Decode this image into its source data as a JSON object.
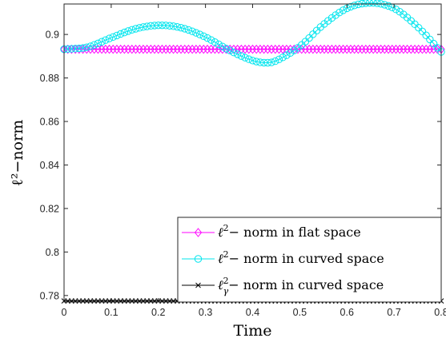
{
  "chart_data": {
    "type": "line",
    "xlabel": "Time",
    "ylabel": "ℓ²−norm",
    "xlim": [
      0,
      0.8
    ],
    "ylim": [
      0.777,
      0.914
    ],
    "x_ticks": [
      "0",
      "0.1",
      "0.2",
      "0.3",
      "0.4",
      "0.5",
      "0.6",
      "0.7",
      "0.8"
    ],
    "y_ticks": [
      "0.78",
      "0.8",
      "0.82",
      "0.84",
      "0.86",
      "0.88",
      "0.9"
    ],
    "grid": false,
    "legend_position": "bottom-right",
    "series": [
      {
        "name": "ℓ²− norm in flat space",
        "name_base": "ℓ",
        "name_sup": "2",
        "name_rest": "− norm in flat space",
        "color": "#ff00ff",
        "marker": "diamond",
        "x": [
          0,
          0.1,
          0.2,
          0.3,
          0.4,
          0.5,
          0.6,
          0.7,
          0.8
        ],
        "y": [
          0.8932,
          0.8932,
          0.8932,
          0.8932,
          0.8932,
          0.8932,
          0.8932,
          0.8932,
          0.8932
        ]
      },
      {
        "name": "ℓ²− norm in curved space",
        "name_base": "ℓ",
        "name_sup": "2",
        "name_rest": "− norm in curved space",
        "color": "#00e5ee",
        "marker": "circle",
        "x": [
          0,
          0.05,
          0.1,
          0.15,
          0.2,
          0.25,
          0.3,
          0.35,
          0.4,
          0.43,
          0.45,
          0.5,
          0.55,
          0.6,
          0.65,
          0.7,
          0.75,
          0.8
        ],
        "y": [
          0.8932,
          0.8942,
          0.8985,
          0.9025,
          0.9042,
          0.903,
          0.8988,
          0.8928,
          0.888,
          0.887,
          0.8879,
          0.8945,
          0.9045,
          0.912,
          0.9145,
          0.912,
          0.9035,
          0.892
        ]
      },
      {
        "name": "ℓγ²− norm in curved space",
        "name_base": "ℓ",
        "name_sup": "2",
        "name_sub": "γ",
        "name_rest": "− norm in curved space",
        "color": "#000000",
        "marker": "x",
        "x": [
          0,
          0.1,
          0.2,
          0.3,
          0.4,
          0.5,
          0.6,
          0.7,
          0.8
        ],
        "y": [
          0.7775,
          0.7775,
          0.7775,
          0.7775,
          0.7775,
          0.7775,
          0.7775,
          0.7775,
          0.7775
        ]
      }
    ]
  }
}
